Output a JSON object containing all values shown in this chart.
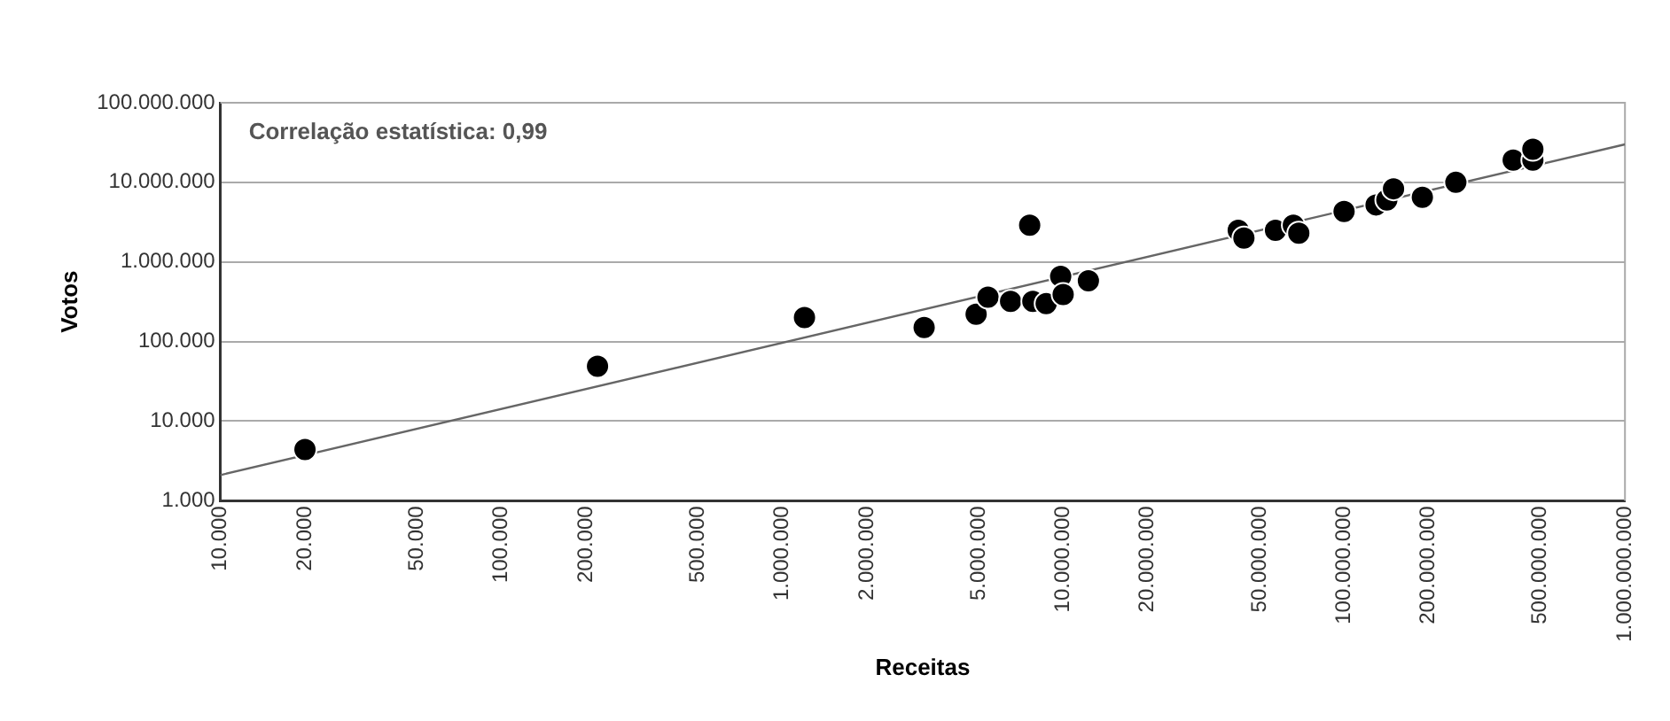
{
  "chart_data": {
    "type": "scatter",
    "xlabel": "Receitas",
    "ylabel": "Votos",
    "annotations": [
      "Correlação estatística: 0,99"
    ],
    "log": "xy",
    "grid": "y",
    "legend": false,
    "marker": "circle",
    "xlim": [
      10000,
      1000000000
    ],
    "ylim": [
      1000,
      100000000
    ],
    "xticks": [
      {
        "value": 10000,
        "label": "10.000"
      },
      {
        "value": 20000,
        "label": "20.000"
      },
      {
        "value": 50000,
        "label": "50.000"
      },
      {
        "value": 100000,
        "label": "100.000"
      },
      {
        "value": 200000,
        "label": "200.000"
      },
      {
        "value": 500000,
        "label": "500.000"
      },
      {
        "value": 1000000,
        "label": "1.000.000"
      },
      {
        "value": 2000000,
        "label": "2.000.000"
      },
      {
        "value": 5000000,
        "label": "5.000.000"
      },
      {
        "value": 10000000,
        "label": "10.000.000"
      },
      {
        "value": 20000000,
        "label": "20.000.000"
      },
      {
        "value": 50000000,
        "label": "50.000.000"
      },
      {
        "value": 100000000,
        "label": "100.000.000"
      },
      {
        "value": 200000000,
        "label": "200.000.000"
      },
      {
        "value": 500000000,
        "label": "500.000.000"
      },
      {
        "value": 1000000000,
        "label": "1.000.000.000"
      }
    ],
    "yticks": [
      {
        "value": 1000,
        "label": "1.000"
      },
      {
        "value": 10000,
        "label": "10.000"
      },
      {
        "value": 100000,
        "label": "100.000"
      },
      {
        "value": 1000000,
        "label": "1.000.000"
      },
      {
        "value": 10000000,
        "label": "10.000.000"
      },
      {
        "value": 100000000,
        "label": "100.000.000"
      }
    ],
    "series": [
      {
        "color": "#000000",
        "x": [
          20000,
          220000,
          1200000,
          3200000,
          4900000,
          5400000,
          6500000,
          7600000,
          7800000,
          8700000,
          9800000,
          10000000,
          12300000,
          42000000,
          44000000,
          57000000,
          66000000,
          69000000,
          100000000,
          130000000,
          142000000,
          150000000,
          190000000,
          250000000,
          400000000,
          470000000,
          470000000
        ],
        "values": [
          4400,
          49000,
          200000,
          150000,
          220000,
          360000,
          320000,
          2900000,
          320000,
          300000,
          660000,
          390000,
          580000,
          2500000,
          2000000,
          2500000,
          2900000,
          2300000,
          4300000,
          5200000,
          6000000,
          8300000,
          6500000,
          10000000,
          19000000,
          19000000,
          26000000
        ]
      },
      {
        "type": "line",
        "color": "#666666",
        "marker": "none",
        "x": [
          10000,
          1000000000
        ],
        "values": [
          2100,
          30000000
        ]
      }
    ]
  }
}
